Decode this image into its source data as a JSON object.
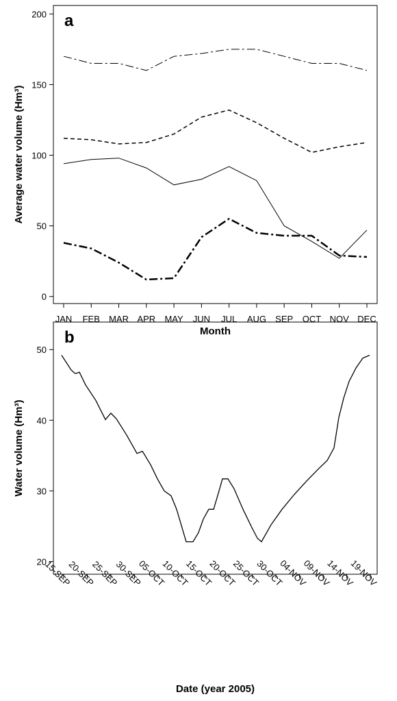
{
  "chart_data": [
    {
      "type": "line",
      "panel_label": "a",
      "x_label": "Month",
      "y_label": "Average water volume (Hm³)",
      "categories": [
        "JAN",
        "FEB",
        "MAR",
        "APR",
        "MAY",
        "JUN",
        "JUL",
        "AUG",
        "SEP",
        "OCT",
        "NOV",
        "DEC"
      ],
      "series": [
        {
          "color": "#000000",
          "line_style": "dash-dot",
          "linewidth": 1,
          "values": [
            170,
            165,
            165,
            160,
            170,
            172,
            175,
            175,
            170,
            165,
            165,
            160
          ]
        },
        {
          "color": "#000000",
          "line_style": "dashed",
          "linewidth": 1.5,
          "values": [
            112,
            111,
            108,
            109,
            115,
            127,
            132,
            123,
            112,
            102,
            106,
            109
          ]
        },
        {
          "color": "#000000",
          "line_style": "solid",
          "linewidth": 1,
          "values": [
            94,
            97,
            98,
            91,
            79,
            83,
            92,
            82,
            50,
            39,
            27,
            47
          ]
        },
        {
          "color": "#000000",
          "line_style": "dash-dot",
          "linewidth": 2.5,
          "values": [
            38,
            34,
            24,
            12,
            13,
            42,
            55,
            45,
            43,
            43,
            29,
            28
          ]
        }
      ],
      "ylim": [
        -5,
        206
      ],
      "yticks": [
        0,
        50,
        100,
        150,
        200
      ],
      "grid": false
    },
    {
      "type": "line",
      "panel_label": "b",
      "x_label": "Date (year 2005)",
      "y_label": "Water volume (Hm³)",
      "x": [
        -0.44,
        1.6,
        2.47,
        3.34,
        4.64,
        6.82,
        8.85,
        10.01,
        11.17,
        13.35,
        15.53,
        16.69,
        18.43,
        19.88,
        21.33,
        22.78,
        23.94,
        25.97,
        27.42,
        28.58,
        29.6,
        30.76,
        31.78,
        32.94,
        33.66,
        34.82,
        36.13,
        38.01,
        39.9,
        41.06,
        41.93,
        43.96,
        46.29,
        48.9,
        51.51,
        53.98,
        55.86,
        57.31,
        58.33,
        59.34,
        60.5,
        61.96,
        63.41,
        64.86
      ],
      "series": [
        {
          "color": "#000000",
          "line_style": "solid",
          "linewidth": 1.3,
          "values": [
            49.2,
            47.1,
            46.6,
            46.8,
            45.0,
            42.8,
            40.1,
            41.0,
            40.2,
            37.9,
            35.3,
            35.6,
            33.7,
            31.7,
            30.0,
            29.3,
            27.4,
            22.8,
            22.8,
            24.1,
            26.0,
            27.4,
            27.4,
            30.0,
            31.7,
            31.7,
            30.3,
            27.4,
            24.8,
            23.3,
            22.8,
            25.2,
            27.4,
            29.5,
            31.4,
            33.1,
            34.3,
            36.1,
            40.4,
            43.1,
            45.5,
            47.4,
            48.8,
            49.2
          ]
        }
      ],
      "xlim": [
        -2.18,
        66.45
      ],
      "xticks": [
        {
          "value": 0,
          "label": "15-SEP"
        },
        {
          "value": 5,
          "label": "20-SEP"
        },
        {
          "value": 10,
          "label": "25-SEP"
        },
        {
          "value": 15,
          "label": "30-SEP"
        },
        {
          "value": 20,
          "label": "05-OCT"
        },
        {
          "value": 25,
          "label": "10-OCT"
        },
        {
          "value": 30,
          "label": "15-OCT"
        },
        {
          "value": 35,
          "label": "20-OCT"
        },
        {
          "value": 40,
          "label": "25-OCT"
        },
        {
          "value": 45,
          "label": "30-OCT"
        },
        {
          "value": 50,
          "label": "04-NOV"
        },
        {
          "value": 55,
          "label": "09-NOV"
        },
        {
          "value": 60,
          "label": "14-NOV"
        },
        {
          "value": 65,
          "label": "19-NOV"
        }
      ],
      "ylim": [
        18.2,
        53.9
      ],
      "yticks": [
        20,
        30,
        40,
        50
      ],
      "grid": false
    }
  ]
}
